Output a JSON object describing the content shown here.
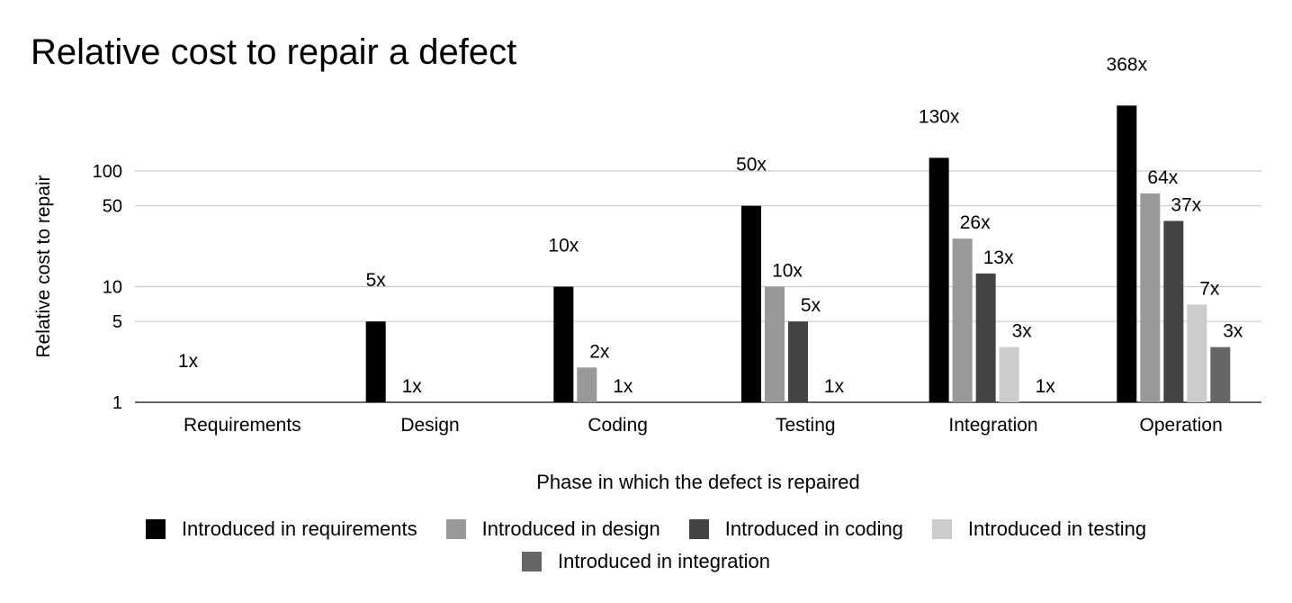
{
  "chart_data": {
    "type": "bar",
    "title": "Relative cost to repair a defect",
    "xlabel": "Phase in which the defect is repaired",
    "ylabel": "Relative cost to repair",
    "y_scale": "log",
    "ylim": [
      1,
      400
    ],
    "y_ticks": [
      {
        "value": 1,
        "label": "1"
      },
      {
        "value": 5,
        "label": "5"
      },
      {
        "value": 10,
        "label": "10"
      },
      {
        "value": 50,
        "label": "50"
      },
      {
        "value": 100,
        "label": "100"
      }
    ],
    "grid": true,
    "legend_position": "bottom",
    "categories": [
      "Requirements",
      "Design",
      "Coding",
      "Testing",
      "Integration",
      "Operation"
    ],
    "series": [
      {
        "name": "Introduced in requirements",
        "color": "#000000",
        "values": [
          1,
          5,
          10,
          50,
          130,
          368
        ],
        "labels": [
          "1x",
          "5x",
          "10x",
          "50x",
          "130x",
          "368x"
        ]
      },
      {
        "name": "Introduced in design",
        "color": "#999999",
        "values": [
          null,
          1,
          2,
          10,
          26,
          64
        ],
        "labels": [
          null,
          "1x",
          "2x",
          "10x",
          "26x",
          "64x"
        ]
      },
      {
        "name": "Introduced in coding",
        "color": "#434343",
        "values": [
          null,
          null,
          1,
          5,
          13,
          37
        ],
        "labels": [
          null,
          null,
          "1x",
          "5x",
          "13x",
          "37x"
        ]
      },
      {
        "name": "Introduced in testing",
        "color": "#cccccc",
        "values": [
          null,
          null,
          null,
          1,
          3,
          7
        ],
        "labels": [
          null,
          null,
          null,
          "1x",
          "3x",
          "7x"
        ]
      },
      {
        "name": "Introduced in integration",
        "color": "#666666",
        "values": [
          null,
          null,
          null,
          null,
          1,
          3
        ],
        "labels": [
          null,
          null,
          null,
          null,
          "1x",
          "3x"
        ]
      }
    ]
  }
}
